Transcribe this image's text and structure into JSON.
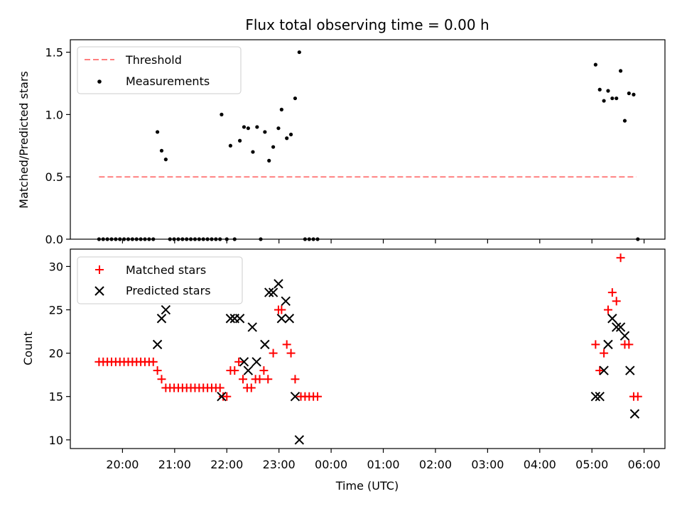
{
  "colors": {
    "threshold": "#ff7f7f",
    "measurements": "#000000",
    "matched": "#ff0000",
    "predicted": "#000000"
  },
  "chart_data": [
    {
      "type": "scatter",
      "title": "Flux total observing time = 0.00 h",
      "xlabel": "",
      "ylabel": "Matched/Predicted stars",
      "ylim": [
        0,
        1.6
      ],
      "yticks": [
        0.0,
        0.5,
        1.0,
        1.5
      ],
      "ytick_labels": [
        "0.0",
        "0.5",
        "1.0",
        "1.5"
      ],
      "x_unit": "hours since 00:00 UTC (negative = previous day)",
      "xlim": [
        -5.0,
        6.4
      ],
      "legend_position": "top-left",
      "series": [
        {
          "name": "Threshold",
          "kind": "dashed-line",
          "x": [
            -4.45,
            5.85
          ],
          "y": [
            0.5,
            0.5
          ]
        },
        {
          "name": "Measurements",
          "kind": "dot",
          "points": [
            [
              -4.45,
              0
            ],
            [
              -4.37,
              0
            ],
            [
              -4.29,
              0
            ],
            [
              -4.21,
              0
            ],
            [
              -4.13,
              0
            ],
            [
              -4.05,
              0
            ],
            [
              -3.97,
              0
            ],
            [
              -3.89,
              0
            ],
            [
              -3.81,
              0
            ],
            [
              -3.73,
              0
            ],
            [
              -3.65,
              0
            ],
            [
              -3.57,
              0
            ],
            [
              -3.49,
              0
            ],
            [
              -3.41,
              0
            ],
            [
              -3.33,
              0.86
            ],
            [
              -3.25,
              0.71
            ],
            [
              -3.17,
              0.64
            ],
            [
              -3.09,
              0
            ],
            [
              -3.01,
              0
            ],
            [
              -2.93,
              0
            ],
            [
              -2.85,
              0
            ],
            [
              -2.77,
              0
            ],
            [
              -2.69,
              0
            ],
            [
              -2.61,
              0
            ],
            [
              -2.53,
              0
            ],
            [
              -2.45,
              0
            ],
            [
              -2.37,
              0
            ],
            [
              -2.29,
              0
            ],
            [
              -2.21,
              0
            ],
            [
              -2.13,
              0
            ],
            [
              -2.1,
              1.0
            ],
            [
              -2.0,
              0
            ],
            [
              -1.93,
              0.75
            ],
            [
              -1.85,
              0
            ],
            [
              -1.75,
              0.79
            ],
            [
              -1.67,
              0.9
            ],
            [
              -1.59,
              0.89
            ],
            [
              -1.5,
              0.7
            ],
            [
              -1.42,
              0.9
            ],
            [
              -1.35,
              0
            ],
            [
              -1.27,
              0.86
            ],
            [
              -1.19,
              0.63
            ],
            [
              -1.11,
              0.74
            ],
            [
              -1.01,
              0.89
            ],
            [
              -0.95,
              1.04
            ],
            [
              -0.85,
              0.81
            ],
            [
              -0.77,
              0.84
            ],
            [
              -0.69,
              1.13
            ],
            [
              -0.61,
              1.5
            ],
            [
              -0.5,
              0
            ],
            [
              -0.42,
              0
            ],
            [
              -0.34,
              0
            ],
            [
              -0.26,
              0
            ],
            [
              5.07,
              1.4
            ],
            [
              5.15,
              1.2
            ],
            [
              5.23,
              1.11
            ],
            [
              5.31,
              1.19
            ],
            [
              5.39,
              1.13
            ],
            [
              5.47,
              1.13
            ],
            [
              5.55,
              1.35
            ],
            [
              5.63,
              0.95
            ],
            [
              5.71,
              1.17
            ],
            [
              5.8,
              1.16
            ],
            [
              5.88,
              0
            ]
          ]
        }
      ]
    },
    {
      "type": "scatter",
      "title": "",
      "xlabel": "Time (UTC)",
      "ylabel": "Count",
      "ylim": [
        9,
        32
      ],
      "yticks": [
        10,
        15,
        20,
        25,
        30
      ],
      "ytick_labels": [
        "10",
        "15",
        "20",
        "25",
        "30"
      ],
      "x_unit": "hours since 00:00 UTC (negative = previous day)",
      "xlim": [
        -5.0,
        6.4
      ],
      "xticks": [
        -4,
        -3,
        -2,
        -1,
        0,
        1,
        2,
        3,
        4,
        5,
        6
      ],
      "xtick_labels": [
        "20:00",
        "21:00",
        "22:00",
        "23:00",
        "00:00",
        "01:00",
        "02:00",
        "03:00",
        "04:00",
        "05:00",
        "06:00"
      ],
      "legend_position": "top-left",
      "series": [
        {
          "name": "Matched stars",
          "kind": "plus",
          "points": [
            [
              -4.45,
              19
            ],
            [
              -4.37,
              19
            ],
            [
              -4.29,
              19
            ],
            [
              -4.21,
              19
            ],
            [
              -4.13,
              19
            ],
            [
              -4.05,
              19
            ],
            [
              -3.97,
              19
            ],
            [
              -3.89,
              19
            ],
            [
              -3.81,
              19
            ],
            [
              -3.73,
              19
            ],
            [
              -3.65,
              19
            ],
            [
              -3.57,
              19
            ],
            [
              -3.49,
              19
            ],
            [
              -3.41,
              19
            ],
            [
              -3.33,
              18
            ],
            [
              -3.25,
              17
            ],
            [
              -3.17,
              16
            ],
            [
              -3.09,
              16
            ],
            [
              -3.01,
              16
            ],
            [
              -2.93,
              16
            ],
            [
              -2.85,
              16
            ],
            [
              -2.77,
              16
            ],
            [
              -2.69,
              16
            ],
            [
              -2.61,
              16
            ],
            [
              -2.53,
              16
            ],
            [
              -2.45,
              16
            ],
            [
              -2.37,
              16
            ],
            [
              -2.29,
              16
            ],
            [
              -2.21,
              16
            ],
            [
              -2.13,
              16
            ],
            [
              -2.07,
              15
            ],
            [
              -2.0,
              15
            ],
            [
              -1.93,
              18
            ],
            [
              -1.85,
              18
            ],
            [
              -1.77,
              19
            ],
            [
              -1.69,
              17
            ],
            [
              -1.61,
              16
            ],
            [
              -1.53,
              16
            ],
            [
              -1.45,
              17
            ],
            [
              -1.37,
              17
            ],
            [
              -1.29,
              18
            ],
            [
              -1.21,
              17
            ],
            [
              -1.11,
              20
            ],
            [
              -1.01,
              25
            ],
            [
              -0.95,
              25
            ],
            [
              -0.85,
              21
            ],
            [
              -0.77,
              20
            ],
            [
              -0.69,
              17
            ],
            [
              -0.58,
              15
            ],
            [
              -0.5,
              15
            ],
            [
              -0.42,
              15
            ],
            [
              -0.34,
              15
            ],
            [
              -0.26,
              15
            ],
            [
              5.07,
              21
            ],
            [
              5.15,
              18
            ],
            [
              5.23,
              20
            ],
            [
              5.31,
              25
            ],
            [
              5.39,
              27
            ],
            [
              5.47,
              26
            ],
            [
              5.55,
              31
            ],
            [
              5.63,
              21
            ],
            [
              5.71,
              21
            ],
            [
              5.8,
              15
            ],
            [
              5.88,
              15
            ]
          ]
        },
        {
          "name": "Predicted stars",
          "kind": "x",
          "points": [
            [
              -3.33,
              21
            ],
            [
              -3.25,
              24
            ],
            [
              -3.17,
              25
            ],
            [
              -2.1,
              15
            ],
            [
              -1.93,
              24
            ],
            [
              -1.85,
              24
            ],
            [
              -1.75,
              24
            ],
            [
              -1.67,
              19
            ],
            [
              -1.59,
              18
            ],
            [
              -1.51,
              23
            ],
            [
              -1.43,
              19
            ],
            [
              -1.27,
              21
            ],
            [
              -1.19,
              27
            ],
            [
              -1.11,
              27
            ],
            [
              -1.01,
              28
            ],
            [
              -0.95,
              24
            ],
            [
              -0.87,
              26
            ],
            [
              -0.8,
              24
            ],
            [
              -0.69,
              15
            ],
            [
              -0.61,
              10
            ],
            [
              5.07,
              15
            ],
            [
              5.15,
              15
            ],
            [
              5.23,
              18
            ],
            [
              5.31,
              21
            ],
            [
              5.39,
              24
            ],
            [
              5.47,
              23
            ],
            [
              5.55,
              23
            ],
            [
              5.63,
              22
            ],
            [
              5.73,
              18
            ],
            [
              5.82,
              13
            ]
          ]
        }
      ]
    }
  ]
}
